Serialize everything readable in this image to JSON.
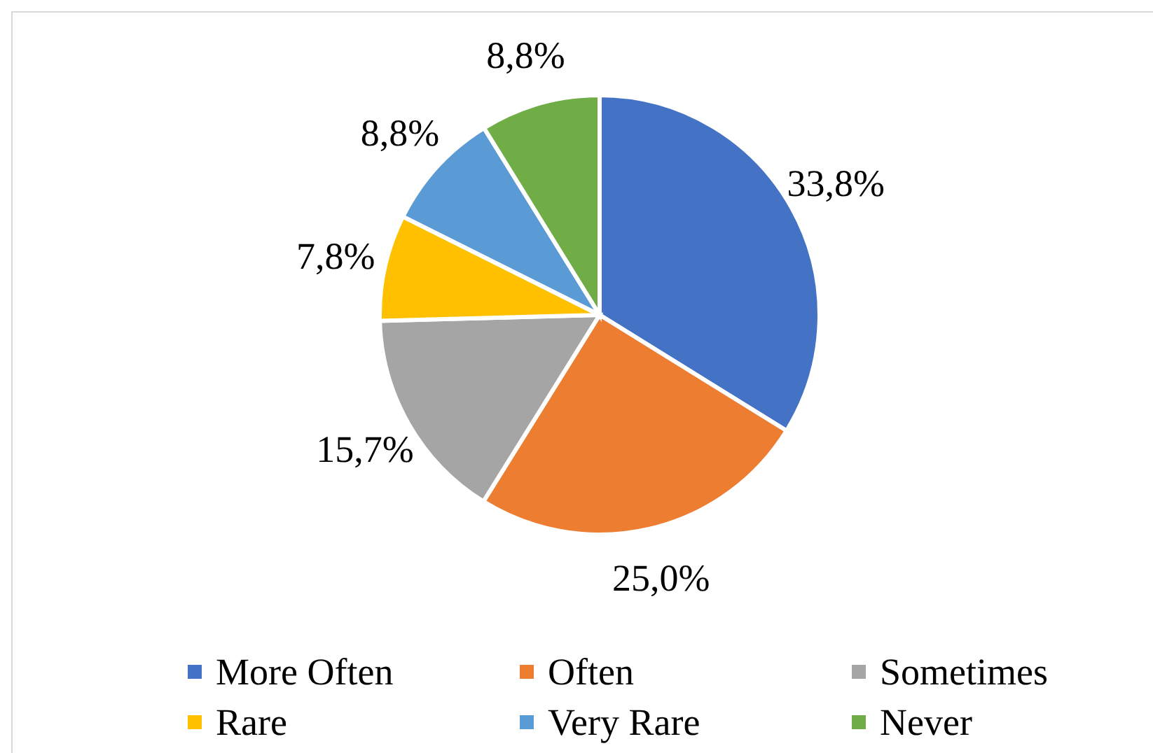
{
  "chart_data": {
    "type": "pie",
    "categories": [
      "More Often",
      "Often",
      "Sometimes",
      "Rare",
      "Very Rare",
      "Never"
    ],
    "values": [
      33.8,
      25.0,
      15.7,
      7.8,
      8.8,
      8.8
    ],
    "colors": [
      "#4472c4",
      "#ed7d31",
      "#a5a5a5",
      "#ffc000",
      "#5b9bd5",
      "#70ad47"
    ],
    "value_labels": [
      "33,8%",
      "25,0%",
      "15,7%",
      "7,8%",
      "8,8%",
      "8,8%"
    ],
    "legend": "bottom"
  }
}
